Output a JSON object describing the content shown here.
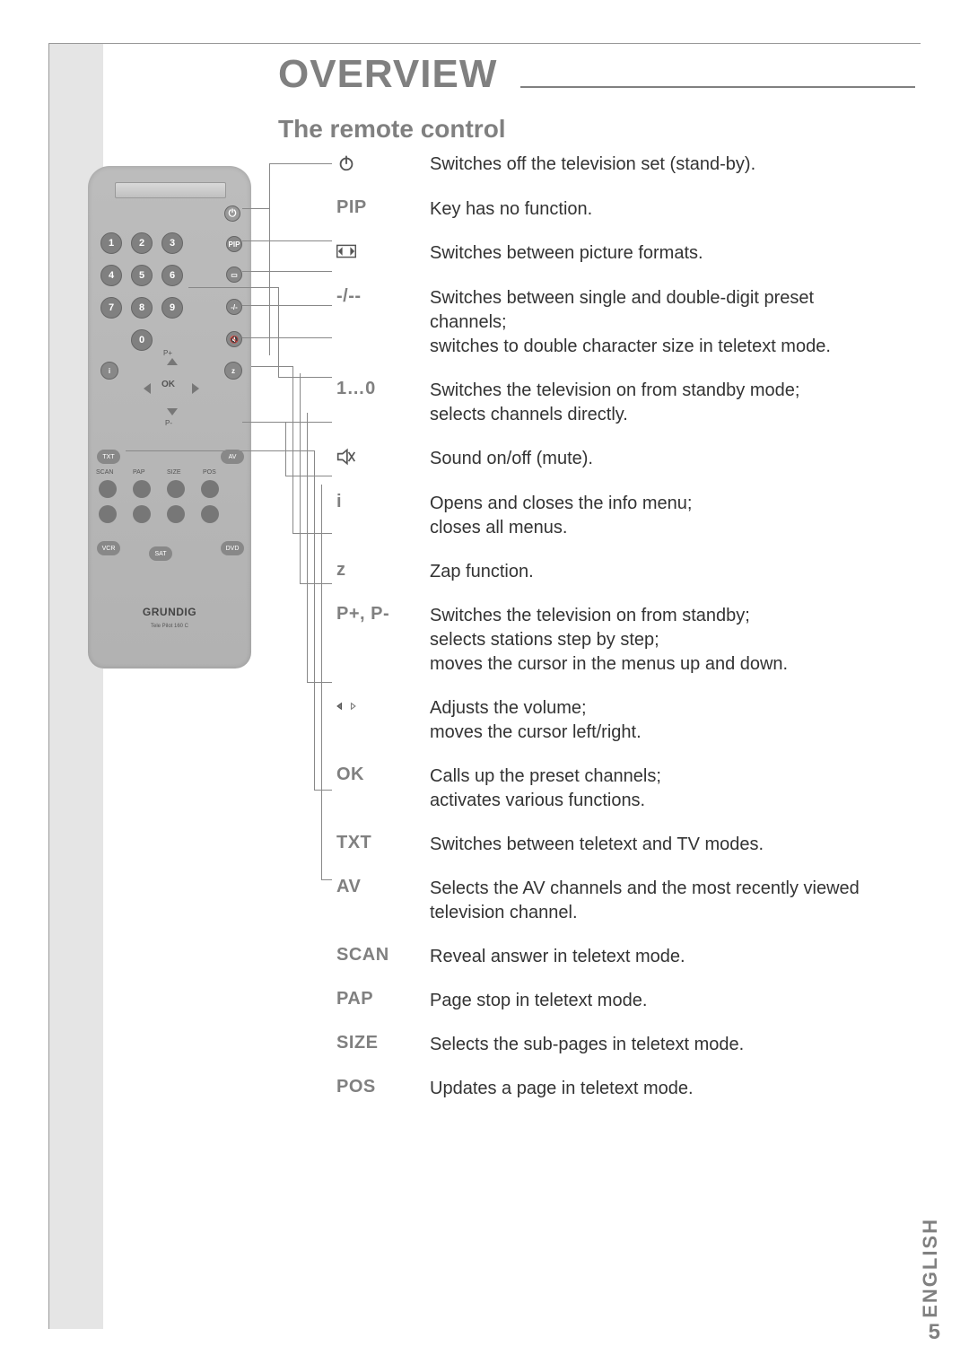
{
  "page": {
    "title": "OVERVIEW",
    "subtitle": "The remote control",
    "language_label": "ENGLISH",
    "page_number": "5",
    "colors": {
      "heading": "#808080",
      "body": "#333333",
      "margin_bg": "#e5e5e5",
      "remote_bg": "#b6b6b6"
    }
  },
  "remote": {
    "brand": "GRUNDIG",
    "model": "Tele Pilot 160 C",
    "number_buttons": [
      "1",
      "2",
      "3",
      "4",
      "5",
      "6",
      "7",
      "8",
      "9",
      "0"
    ],
    "side_buttons": [
      "PIP",
      "img",
      "-/--",
      "mute"
    ],
    "left_buttons": [
      "i",
      "z"
    ],
    "ok_label": "OK",
    "p_plus": "P+",
    "p_minus": "P-",
    "corner_labels": [
      "TXT",
      "AV"
    ],
    "row_labels": [
      "SCAN",
      "PAP",
      "SIZE",
      "POS"
    ],
    "bottom_labels": [
      "VCR",
      "SAT",
      "DVD"
    ]
  },
  "descriptions": [
    {
      "key_type": "icon",
      "icon": "power",
      "text": "Switches off the television set (stand-by)."
    },
    {
      "key_type": "text",
      "key": "PIP",
      "text": "Key has no function."
    },
    {
      "key_type": "icon",
      "icon": "format",
      "text": "Switches between picture formats."
    },
    {
      "key_type": "text",
      "key": "-/--",
      "text": "Switches between single and double-digit preset channels;\nswitches to double character size in teletext mode."
    },
    {
      "key_type": "text",
      "key": "1…0",
      "text": "Switches the television on from standby mode;\nselects channels directly."
    },
    {
      "key_type": "icon",
      "icon": "mute",
      "text": "Sound on/off (mute)."
    },
    {
      "key_type": "text",
      "key": "i",
      "text": "Opens and closes the info menu;\ncloses all menus."
    },
    {
      "key_type": "text",
      "key": "z",
      "text": "Zap function."
    },
    {
      "key_type": "text",
      "key": "P+, P-",
      "text": "Switches the television on from standby;\nselects stations step by step;\nmoves the cursor in the menus up and down."
    },
    {
      "key_type": "icon",
      "icon": "leftright",
      "text": "Adjusts the volume;\nmoves the cursor left/right."
    },
    {
      "key_type": "text",
      "key": "OK",
      "text": "Calls up the preset channels;\nactivates various functions."
    },
    {
      "key_type": "text",
      "key": "TXT",
      "text": "Switches between teletext and TV modes."
    },
    {
      "key_type": "text",
      "key": "AV",
      "text": "Selects the AV channels and the most recently viewed television channel."
    },
    {
      "key_type": "text",
      "key": "SCAN",
      "text": "Reveal answer in teletext mode."
    },
    {
      "key_type": "text",
      "key": "PAP",
      "text": "Page stop in teletext mode."
    },
    {
      "key_type": "text",
      "key": "SIZE",
      "text": "Selects the sub-pages in teletext mode."
    },
    {
      "key_type": "text",
      "key": "POS",
      "text": "Updates a page in teletext mode."
    }
  ]
}
